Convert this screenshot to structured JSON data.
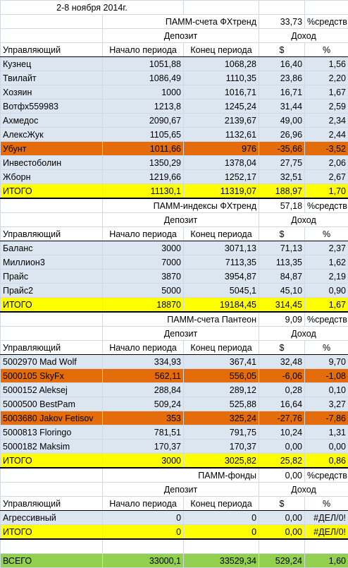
{
  "title": "2-8 ноября 2014г.",
  "columns": [
    "Управляющий",
    "Начало периода",
    "Конец периода",
    "$",
    "%"
  ],
  "group_headers": [
    "Депозит",
    "Доход"
  ],
  "row_fill": "#dce6f1",
  "total_fill": "#ffff00",
  "grand_fill": "#92d050",
  "sections": [
    {
      "name": "ПАММ-счета ФХтренд",
      "share": "33,73",
      "share_unit": "%средств",
      "rows": [
        {
          "cells": [
            "Кузнец",
            "1051,88",
            "1068,28",
            "16,40",
            "1,56"
          ]
        },
        {
          "cells": [
            "Твилайт",
            "1086,49",
            "1110,35",
            "23,86",
            "2,20"
          ]
        },
        {
          "cells": [
            "Хозяин",
            "1000",
            "1016,71",
            "16,71",
            "1,67"
          ]
        },
        {
          "cells": [
            "Вотфх559983",
            "1213,8",
            "1245,24",
            "31,44",
            "2,59"
          ]
        },
        {
          "cells": [
            "Ахмедос",
            "2090,67",
            "2139,67",
            "49,00",
            "2,34"
          ]
        },
        {
          "cells": [
            "АлексЖук",
            "1105,65",
            "1132,61",
            "26,96",
            "2,44"
          ]
        },
        {
          "cells": [
            "Убунт",
            "1011,66",
            "976",
            "-35,66",
            "-3,52"
          ],
          "fill": "#e46c0a"
        },
        {
          "cells": [
            "Инвестоболин",
            "1350,29",
            "1378,04",
            "27,75",
            "2,06"
          ]
        },
        {
          "cells": [
            "Жборн",
            "1219,66",
            "1252,17",
            "32,51",
            "2,67"
          ]
        }
      ],
      "total": [
        "ИТОГО",
        "11130,1",
        "11319,07",
        "188,97",
        "1,70"
      ]
    },
    {
      "name": "ПАММ-индексы ФХтренд",
      "share": "57,18",
      "share_unit": "%средств",
      "rows": [
        {
          "cells": [
            "Баланс",
            "3000",
            "3071,13",
            "71,13",
            "2,37"
          ]
        },
        {
          "cells": [
            "Миллион3",
            "7000",
            "7113,35",
            "113,35",
            "1,62"
          ]
        },
        {
          "cells": [
            "Прайс",
            "3870",
            "3954,87",
            "84,87",
            "2,19"
          ]
        },
        {
          "cells": [
            "Прайс2",
            "5000",
            "5045,1",
            "45,10",
            "0,90"
          ]
        }
      ],
      "total": [
        "ИТОГО",
        "18870",
        "19184,45",
        "314,45",
        "1,67"
      ]
    },
    {
      "name": "ПАММ-счета Пантеон",
      "share": "9,09",
      "share_unit": "%средств",
      "rows": [
        {
          "cells": [
            "5002970 Mad Wolf",
            "334,93",
            "367,41",
            "32,48",
            "9,70"
          ]
        },
        {
          "cells": [
            "5000105 SkyFx",
            "562,11",
            "556,05",
            "-6,06",
            "-1,08"
          ],
          "fill": "#e46c0a"
        },
        {
          "cells": [
            "5000152 Aleksej",
            "288,84",
            "289,12",
            "0,28",
            "0,10"
          ]
        },
        {
          "cells": [
            "5000500 BestPam",
            "509,24",
            "525,88",
            "16,64",
            "3,27"
          ]
        },
        {
          "cells": [
            "5003680 Jakov Fetisov",
            "353",
            "325,24",
            "-27,76",
            "-7,86"
          ],
          "fill": "#e46c0a"
        },
        {
          "cells": [
            "5000813 Floringo",
            "781,51",
            "791,75",
            "10,24",
            "1,31"
          ]
        },
        {
          "cells": [
            "5000182 Maksim",
            "170,37",
            "170,37",
            "0,00",
            "0,00"
          ]
        }
      ],
      "total": [
        "ИТОГО",
        "3000",
        "3025,82",
        "25,82",
        "0,86"
      ]
    },
    {
      "name": "ПАММ-фонды",
      "share": "0,00",
      "share_unit": "%средств",
      "rows": [
        {
          "cells": [
            "Агрессивный",
            "0",
            "0",
            "0,00",
            "#ДЕЛ/0!"
          ]
        }
      ],
      "total": [
        "ИТОГО",
        "0",
        "0",
        "0,00",
        "#ДЕЛ/0!"
      ]
    }
  ],
  "grand_total": [
    "ВСЕГО",
    "33000,1",
    "33529,34",
    "529,24",
    "1,60"
  ]
}
